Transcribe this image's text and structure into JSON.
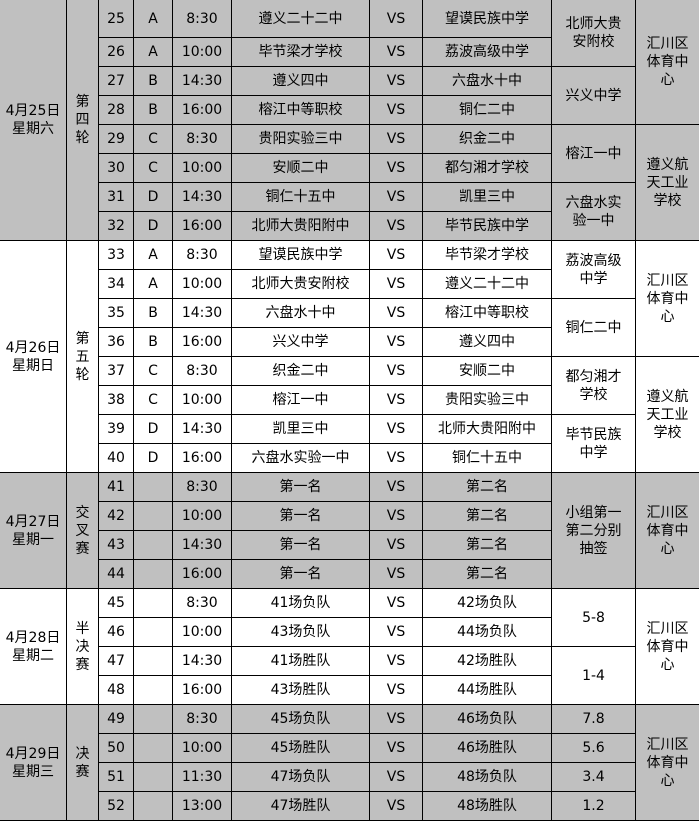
{
  "colors": {
    "shaded_row": "#c0c0c0",
    "plain_row": "#ffffff",
    "border": "#000000"
  },
  "vs_label": "VS",
  "days": [
    {
      "date": "4月25日\n星期六",
      "round": "第\n四\n轮",
      "shaded": true,
      "matches": [
        {
          "num": "25",
          "group": "A",
          "time": "8:30",
          "home": "遵义二十二中",
          "away": "望谟民族中学"
        },
        {
          "num": "26",
          "group": "A",
          "time": "10:00",
          "home": "毕节梁才学校",
          "away": "荔波高级中学"
        },
        {
          "num": "27",
          "group": "B",
          "time": "14:30",
          "home": "遵义四中",
          "away": "六盘水十中"
        },
        {
          "num": "28",
          "group": "B",
          "time": "16:00",
          "home": "榕江中等职校",
          "away": "铜仁二中"
        },
        {
          "num": "29",
          "group": "C",
          "time": "8:30",
          "home": "贵阳实验三中",
          "away": "织金二中"
        },
        {
          "num": "30",
          "group": "C",
          "time": "10:00",
          "home": "安顺二中",
          "away": "都匀湘才学校"
        },
        {
          "num": "31",
          "group": "D",
          "time": "14:30",
          "home": "铜仁十五中",
          "away": "凯里三中"
        },
        {
          "num": "32",
          "group": "D",
          "time": "16:00",
          "home": "北师大贵阳附中",
          "away": "毕节民族中学"
        }
      ],
      "duty": [
        {
          "text": "北师大贵\n安附校",
          "span": 2
        },
        {
          "text": "兴义中学",
          "span": 2
        },
        {
          "text": "榕江一中",
          "span": 2
        },
        {
          "text": "六盘水实\n验一中",
          "span": 2
        }
      ],
      "venue": [
        {
          "text": "汇川区\n体育中\n心",
          "span": 4
        },
        {
          "text": "遵义航\n天工业\n学校",
          "span": 4
        }
      ]
    },
    {
      "date": "4月26日\n星期日",
      "round": "第\n五\n轮",
      "shaded": false,
      "matches": [
        {
          "num": "33",
          "group": "A",
          "time": "8:30",
          "home": "望谟民族中学",
          "away": "毕节梁才学校"
        },
        {
          "num": "34",
          "group": "A",
          "time": "10:00",
          "home": "北师大贵安附校",
          "away": "遵义二十二中"
        },
        {
          "num": "35",
          "group": "B",
          "time": "14:30",
          "home": "六盘水十中",
          "away": "榕江中等职校"
        },
        {
          "num": "36",
          "group": "B",
          "time": "16:00",
          "home": "兴义中学",
          "away": "遵义四中"
        },
        {
          "num": "37",
          "group": "C",
          "time": "8:30",
          "home": "织金二中",
          "away": "安顺二中"
        },
        {
          "num": "38",
          "group": "C",
          "time": "10:00",
          "home": "榕江一中",
          "away": "贵阳实验三中"
        },
        {
          "num": "39",
          "group": "D",
          "time": "14:30",
          "home": "凯里三中",
          "away": "北师大贵阳附中"
        },
        {
          "num": "40",
          "group": "D",
          "time": "16:00",
          "home": "六盘水实验一中",
          "away": "铜仁十五中"
        }
      ],
      "duty": [
        {
          "text": "荔波高级\n中学",
          "span": 2
        },
        {
          "text": "铜仁二中",
          "span": 2
        },
        {
          "text": "都匀湘才\n学校",
          "span": 2
        },
        {
          "text": "毕节民族\n中学",
          "span": 2
        }
      ],
      "venue": [
        {
          "text": "汇川区\n体育中\n心",
          "span": 4
        },
        {
          "text": "遵义航\n天工业\n学校",
          "span": 4
        }
      ]
    },
    {
      "date": "4月27日\n星期一",
      "round": "交\n叉\n赛",
      "shaded": true,
      "matches": [
        {
          "num": "41",
          "group": "",
          "time": "8:30",
          "home": "第一名",
          "away": "第二名"
        },
        {
          "num": "42",
          "group": "",
          "time": "10:00",
          "home": "第一名",
          "away": "第二名"
        },
        {
          "num": "43",
          "group": "",
          "time": "14:30",
          "home": "第一名",
          "away": "第二名"
        },
        {
          "num": "44",
          "group": "",
          "time": "16:00",
          "home": "第一名",
          "away": "第二名"
        }
      ],
      "duty": [
        {
          "text": "小组第一\n第二分别\n抽签",
          "span": 4
        }
      ],
      "venue": [
        {
          "text": "汇川区\n体育中\n心",
          "span": 4
        }
      ]
    },
    {
      "date": "4月28日\n星期二",
      "round": "半\n决\n赛",
      "shaded": false,
      "matches": [
        {
          "num": "45",
          "group": "",
          "time": "8:30",
          "home": "41场负队",
          "away": "42场负队"
        },
        {
          "num": "46",
          "group": "",
          "time": "10:00",
          "home": "43场负队",
          "away": "44场负队"
        },
        {
          "num": "47",
          "group": "",
          "time": "14:30",
          "home": "41场胜队",
          "away": "42场胜队"
        },
        {
          "num": "48",
          "group": "",
          "time": "16:00",
          "home": "43场胜队",
          "away": "44场胜队"
        }
      ],
      "duty": [
        {
          "text": "5-8",
          "span": 2
        },
        {
          "text": "1-4",
          "span": 2
        }
      ],
      "venue": [
        {
          "text": "汇川区\n体育中\n心",
          "span": 4
        }
      ]
    },
    {
      "date": "4月29日\n星期三",
      "round": "决\n赛",
      "shaded": true,
      "matches": [
        {
          "num": "49",
          "group": "",
          "time": "8:30",
          "home": "45场负队",
          "away": "46场负队"
        },
        {
          "num": "50",
          "group": "",
          "time": "10:00",
          "home": "45场胜队",
          "away": "46场胜队"
        },
        {
          "num": "51",
          "group": "",
          "time": "11:30",
          "home": "47场负队",
          "away": "48场负队"
        },
        {
          "num": "52",
          "group": "",
          "time": "13:00",
          "home": "47场胜队",
          "away": "48场胜队"
        }
      ],
      "duty": [
        {
          "text": "7.8",
          "span": 1
        },
        {
          "text": "5.6",
          "span": 1
        },
        {
          "text": "3.4",
          "span": 1
        },
        {
          "text": "1.2",
          "span": 1
        }
      ],
      "venue": [
        {
          "text": "汇川区\n体育中\n心",
          "span": 4
        }
      ]
    }
  ]
}
